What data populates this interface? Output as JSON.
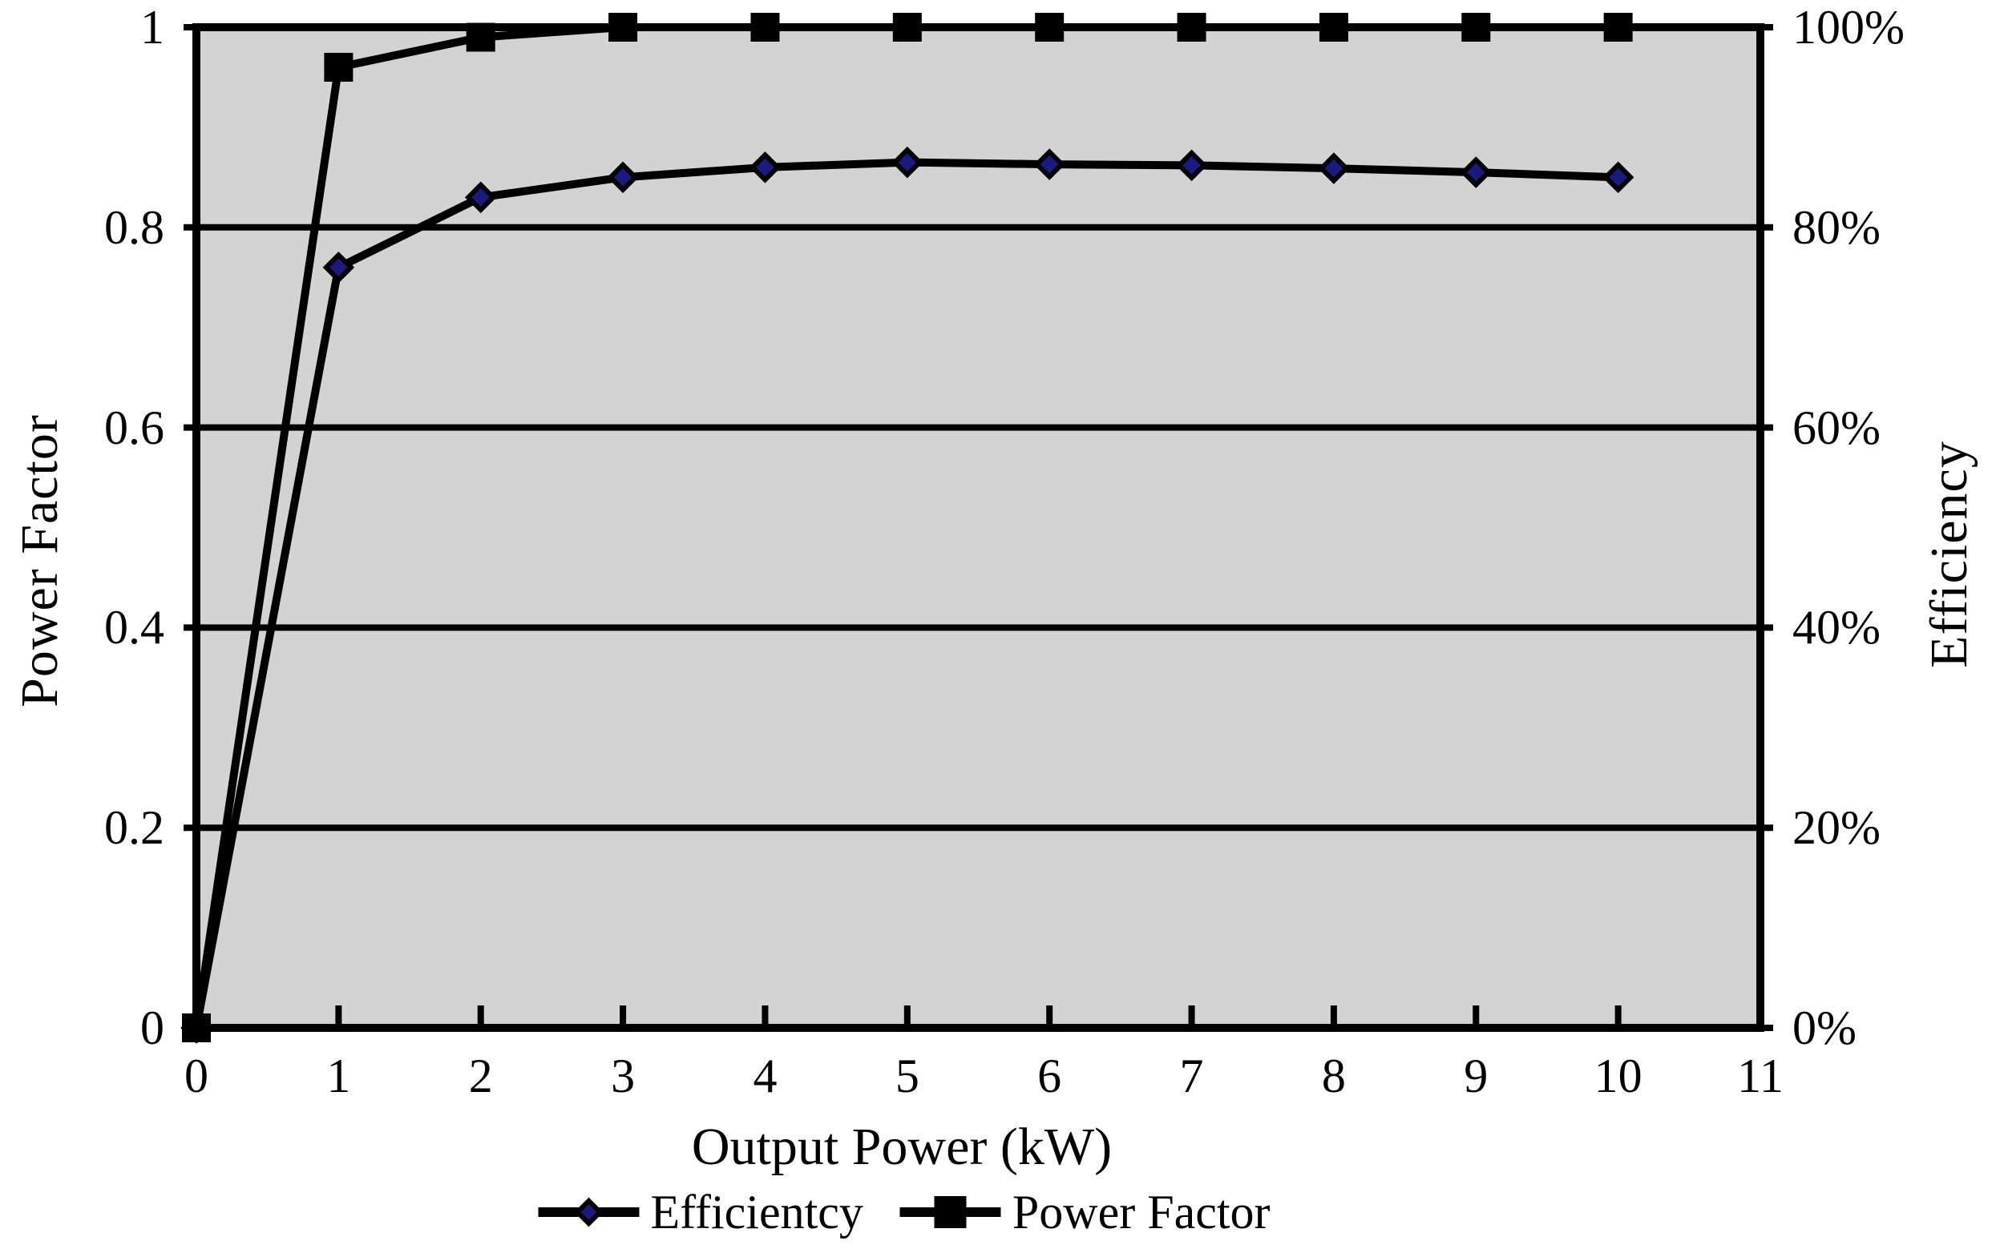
{
  "chart_data": {
    "type": "line",
    "title": "",
    "x": [
      0,
      1,
      2,
      3,
      4,
      5,
      6,
      7,
      8,
      9,
      10
    ],
    "series": [
      {
        "name": "Efficientcy",
        "axis": "right",
        "marker": "diamond",
        "line_color": "#000000",
        "marker_fill": "#1A1A80",
        "values": [
          0,
          76,
          83,
          85,
          86,
          86.5,
          86.3,
          86.2,
          85.9,
          85.5,
          85
        ]
      },
      {
        "name": "Power Factor",
        "axis": "left",
        "marker": "square",
        "line_color": "#000000",
        "marker_fill": "#000000",
        "values": [
          0,
          0.96,
          0.99,
          1,
          1,
          1,
          1,
          1,
          1,
          1,
          1
        ]
      }
    ],
    "x_axis": {
      "label": "Output Power (kW)",
      "min": 0,
      "max": 11,
      "tick_values": [
        0,
        1,
        2,
        3,
        4,
        5,
        6,
        7,
        8,
        9,
        10,
        11
      ],
      "tick_labels": [
        "0",
        "1",
        "2",
        "3",
        "4",
        "5",
        "6",
        "7",
        "8",
        "9",
        "10",
        "11"
      ]
    },
    "y_axis_left": {
      "label": "Power Factor",
      "min": 0,
      "max": 1,
      "tick_values": [
        0,
        0.2,
        0.4,
        0.6,
        0.8,
        1
      ],
      "tick_labels": [
        "0",
        "0.2",
        "0.4",
        "0.6",
        "0.8",
        "1"
      ]
    },
    "y_axis_right": {
      "label": "Efficiency",
      "min": 0,
      "max": 100,
      "tick_values": [
        0,
        20,
        40,
        60,
        80,
        100
      ],
      "tick_labels": [
        "0%",
        "20%",
        "40%",
        "60%",
        "80%",
        "100%"
      ]
    },
    "grid": "horizontal",
    "legend_position": "bottom",
    "plot_bg": "#D3D3D3"
  },
  "colors": {
    "plot_bg": "#D3D3D3",
    "line": "#000000",
    "diamond_fill": "#1A1A80",
    "text": "#000000"
  }
}
